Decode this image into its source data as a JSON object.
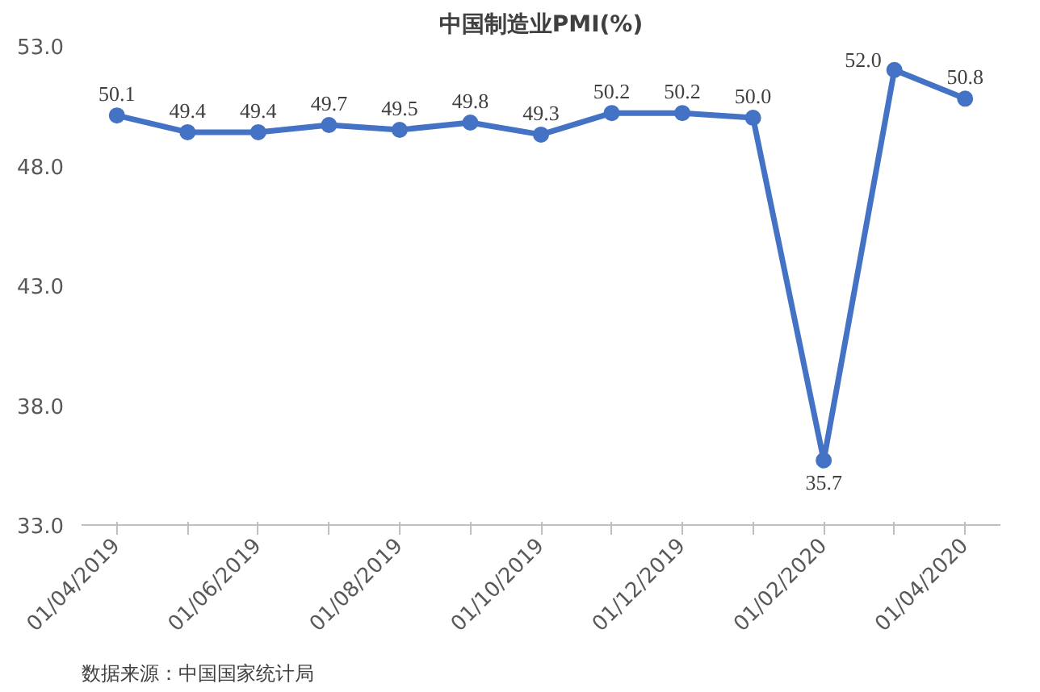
{
  "chart_data": {
    "type": "line",
    "title": "中国制造业PMI(%)",
    "categories": [
      "01/04/2019",
      null,
      "01/06/2019",
      null,
      "01/08/2019",
      null,
      "01/10/2019",
      null,
      "01/12/2019",
      null,
      "01/02/2020",
      null,
      "01/04/2020"
    ],
    "series": [
      {
        "color": "#4472c4",
        "values": [
          50.1,
          49.4,
          49.4,
          49.7,
          49.5,
          49.8,
          49.3,
          50.2,
          50.2,
          50.0,
          35.7,
          52.0,
          50.8
        ],
        "value_labels": [
          "50.1",
          "49.4",
          "49.4",
          "49.7",
          "49.5",
          "49.8",
          "49.3",
          "50.2",
          "50.2",
          "50.0",
          "35.7",
          "52.0",
          "50.8"
        ]
      }
    ],
    "ylim": [
      33.0,
      53.0
    ],
    "yticks": [
      {
        "value": 33.0,
        "label": "33.0"
      },
      {
        "value": 38.0,
        "label": "38.0"
      },
      {
        "value": 43.0,
        "label": "43.0"
      },
      {
        "value": 48.0,
        "label": "48.0"
      },
      {
        "value": 53.0,
        "label": "53.0"
      }
    ],
    "grid": false,
    "marker": "circle",
    "line_style": "solid",
    "annotations": [
      "数据来源：中国国家统计局"
    ]
  }
}
